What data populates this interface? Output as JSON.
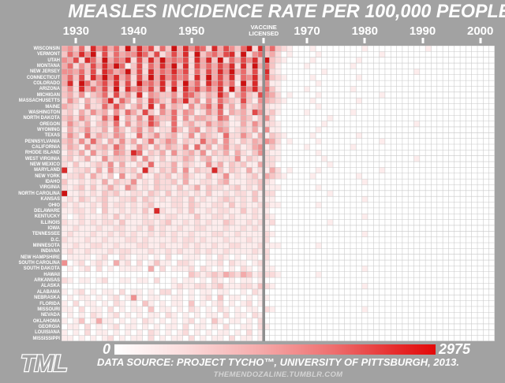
{
  "title": "MEASLES INCIDENCE RATE PER 100,000 PEOPLE",
  "axis": {
    "decades": [
      1930,
      1940,
      1950,
      1970,
      1980,
      1990,
      2000
    ],
    "vaccine_line1": "VACCINE",
    "vaccine_line2": "LICENSED",
    "vaccine_licensed_year": 1963
  },
  "legend": {
    "min": "0",
    "max": "2975"
  },
  "footer": {
    "source": "DATA SOURCE: PROJECT TYCHO™, UNIVERSITY OF PITTSBURGH, 2013.",
    "site": "THEMENDOZALINE.TUMBLR.COM",
    "logo": "TML"
  },
  "colors": {
    "background": "#a2a2a2",
    "grid_line": "#c8c8c8",
    "cell_background": "#ffffff",
    "vaccine_line": "#8f8f8f",
    "text": "#ffffff",
    "site_text": "#d4d4d4",
    "max_red": "#e30808"
  },
  "chart_data": {
    "type": "heatmap",
    "title": "MEASLES INCIDENCE RATE PER 100,000 PEOPLE",
    "unit": "measles cases per 100,000 people per year",
    "x_start_year": 1928,
    "x_end_year": 2002,
    "x_tick_labels": [
      "1930",
      "1940",
      "1950",
      "1970",
      "1980",
      "1990",
      "2000"
    ],
    "vaccine_licensed_year": 1963,
    "value_range": [
      0,
      2975
    ],
    "encoding": "each character of v encodes estimated relative incidence intensity (0=0 cases/white ... 9≈2975 cases/dark red) for one year from 1928 to 2002",
    "palette": [
      "#ffffff",
      "#fdecec",
      "#fadada",
      "#f7c4c4",
      "#f3aaaa",
      "#ef8f8f",
      "#e96b6b",
      "#e24a4a",
      "#d92a2a",
      "#cc1111"
    ],
    "rows": [
      {
        "state": "WISCONSIN",
        "v": "453628574639485726394857628475369284632100010000000010000000000100000000000"
      },
      {
        "state": "VERMONT",
        "v": "364859273645586372474829356478292563420100001000000000010000000000000000000"
      },
      {
        "state": "UTAH",
        "v": "547286394658273849565728483926475839321000010000000100000000000000000000000"
      },
      {
        "state": "MONTANA",
        "v": "462537485961372648593827464758283946310000100000001000000000000000000000000"
      },
      {
        "state": "NEW JERSEY",
        "v": "554637286459372846585726374859463728210000000100000000000000010000000000000"
      },
      {
        "state": "CONNECTICUT",
        "v": "463728595846273948575628394748265837321000010000000100000000000000000000000"
      },
      {
        "state": "COLORADO",
        "v": "482963574837295648373946285746193825110000001000000000000000000000000000000"
      },
      {
        "state": "ARIZONA",
        "v": "352846473928564738292857464829375846310000100000001000000000000000000000000"
      },
      {
        "state": "MICHIGAN",
        "v": "342513462735281543352764243851463275420100001000000000010000000000000000000"
      },
      {
        "state": "MASSACHUSETTS",
        "v": "253142358264142753264835152643273154321000010000000100000000000000000000000"
      },
      {
        "state": "MAINE",
        "v": "432152263741352816243152463724152342110000001000000000000000000000000000000"
      },
      {
        "state": "WASHINGTON",
        "v": "231425341526427315362541253614342752310000100000001000000000000000000000000"
      },
      {
        "state": "NORTH DAKOTA",
        "v": "342531263814252743361524432651243135200000000010000000000000000000000000000"
      },
      {
        "state": "OREGON",
        "v": "253241342615243752161342253431142532210000000100000000000000010000000000000"
      },
      {
        "state": "WYOMING",
        "v": "142352241531352412263145132541232415110000001000000000000000000000000000000"
      },
      {
        "state": "TEXAS",
        "v": "253162432541162352341251432162253141321000010000000100000000000000000000000"
      },
      {
        "state": "PENNSYLVANIA",
        "v": "342526314252413623541322634152132435420100001000000000010000000000000000000"
      },
      {
        "state": "CALIFORNIA",
        "v": "243152342641253142432516241352312451310000100000001000000000000000000000000"
      },
      {
        "state": "RHODE ISLAND",
        "v": "132415231542861324152342513241421352110000001000000000000000000000000000000"
      },
      {
        "state": "WEST VIRGINIA",
        "v": "231241152332415213122431341222513212210000000100000000000000010000000000000"
      },
      {
        "state": "NEW MEXICO",
        "v": "213112325141132612241321152413231142200000000010000000000000000000000000000"
      },
      {
        "state": "MARYLAND",
        "v": "812231415232318213241513228313214121420100001000000000010000000000000000000"
      },
      {
        "state": "NEW YORK",
        "v": "122314213051241132312421131251212314321000010000000100000000000000000000000"
      },
      {
        "state": "IDAHO",
        "v": "311212141322512132231411221341112232100000000000000010000000000000000000000"
      },
      {
        "state": "VIRGINIA",
        "v": "212313124215312132213124132212312131110000001000000000000000000000000000000"
      },
      {
        "state": "NORTH CAROLINA",
        "v": "911212132311221321312212131121221312200000000010000000000000000000000000000"
      },
      {
        "state": "KANSAS",
        "v": "121321231122313212122131211232121311100000000000000010000000000000000000000"
      },
      {
        "state": "OHIO",
        "v": "212112131221212311122132112213121122110000001000000000000000000000000000000"
      },
      {
        "state": "DELAWARE",
        "v": "112212031121213182112131121221131211000000000000000000000000000000000000000"
      },
      {
        "state": "KENTUCKY",
        "v": "101211121312112121221113112212111212100000000000000010000000000000000000000"
      },
      {
        "state": "ILLINOIS",
        "v": "211212122131112212311212121132112121200000000010000000000000000000000000000"
      },
      {
        "state": "IOWA",
        "v": "112111211221121312112112211121121211000000000000000000000000000000000000000"
      },
      {
        "state": "TENNESSEE",
        "v": "121112112121211212121121112211211112100000000000000010000000000000000000000"
      },
      {
        "state": "D.C.",
        "v": "211121121112212111121221211121112112000000000000000000000000000000000000000"
      },
      {
        "state": "MINNESOTA",
        "v": "112112211211122112111212112112211121110000001000000000000000000000000000000"
      },
      {
        "state": "INDIANA",
        "v": "121121112122111211212112121121111212000000000000000000000000000000000000000"
      },
      {
        "state": "NEW HAMPSHIRE",
        "v": "011110120021011010200111010210101102000000000000000000000000000000000000000"
      },
      {
        "state": "SOUTH CAROLINA",
        "v": "501201210412020131102210011202110121000000000000000000000000000000000000000"
      },
      {
        "state": "SOUTH DAKOTA",
        "v": "010120201011110402011120210101021011100000000000000010000000000000000000000"
      },
      {
        "state": "HAWAII",
        "v": "000000000000000000000032123243243122210000001000000000000000000000000000000"
      },
      {
        "state": "ARKANSAS",
        "v": "210110120011011020010110102101011010000000000000000000000000000000000000000"
      },
      {
        "state": "ALASKA",
        "v": "000000000000000000012112212311122132100000000000000010000000000000000000000"
      },
      {
        "state": "ALABAMA",
        "v": "101201011020110102201010110110010210000000000000000000000000000000000000000"
      },
      {
        "state": "NEBRASKA",
        "v": "010110101201510110011010120301101011000000000000000000000000000000000000000"
      },
      {
        "state": "FLORIDA",
        "v": "102011010210103101011030101201012010000000000000000000000000000000000000000"
      },
      {
        "state": "MISSOURI",
        "v": "110201102010110301101021010210101102100000000000000010000000000000000000000"
      },
      {
        "state": "NEVADA",
        "v": "010102101201010110210101011020110210000000000000000000000000000000000000000"
      },
      {
        "state": "OKLAHOMA",
        "v": "101301411010102101010120103101101020000000000000000000000000000000000000000"
      },
      {
        "state": "GEORGIA",
        "v": "011020101201101010110201101020011021000000000000000000000000000000000000000"
      },
      {
        "state": "LOUISIANA",
        "v": "101020110101010210101201010110102010000000000000000000000000000000000000000"
      },
      {
        "state": "MISSISSIPPI",
        "v": "110101012010110201011020101102011010000000000000000000000000000000000000000"
      }
    ]
  }
}
